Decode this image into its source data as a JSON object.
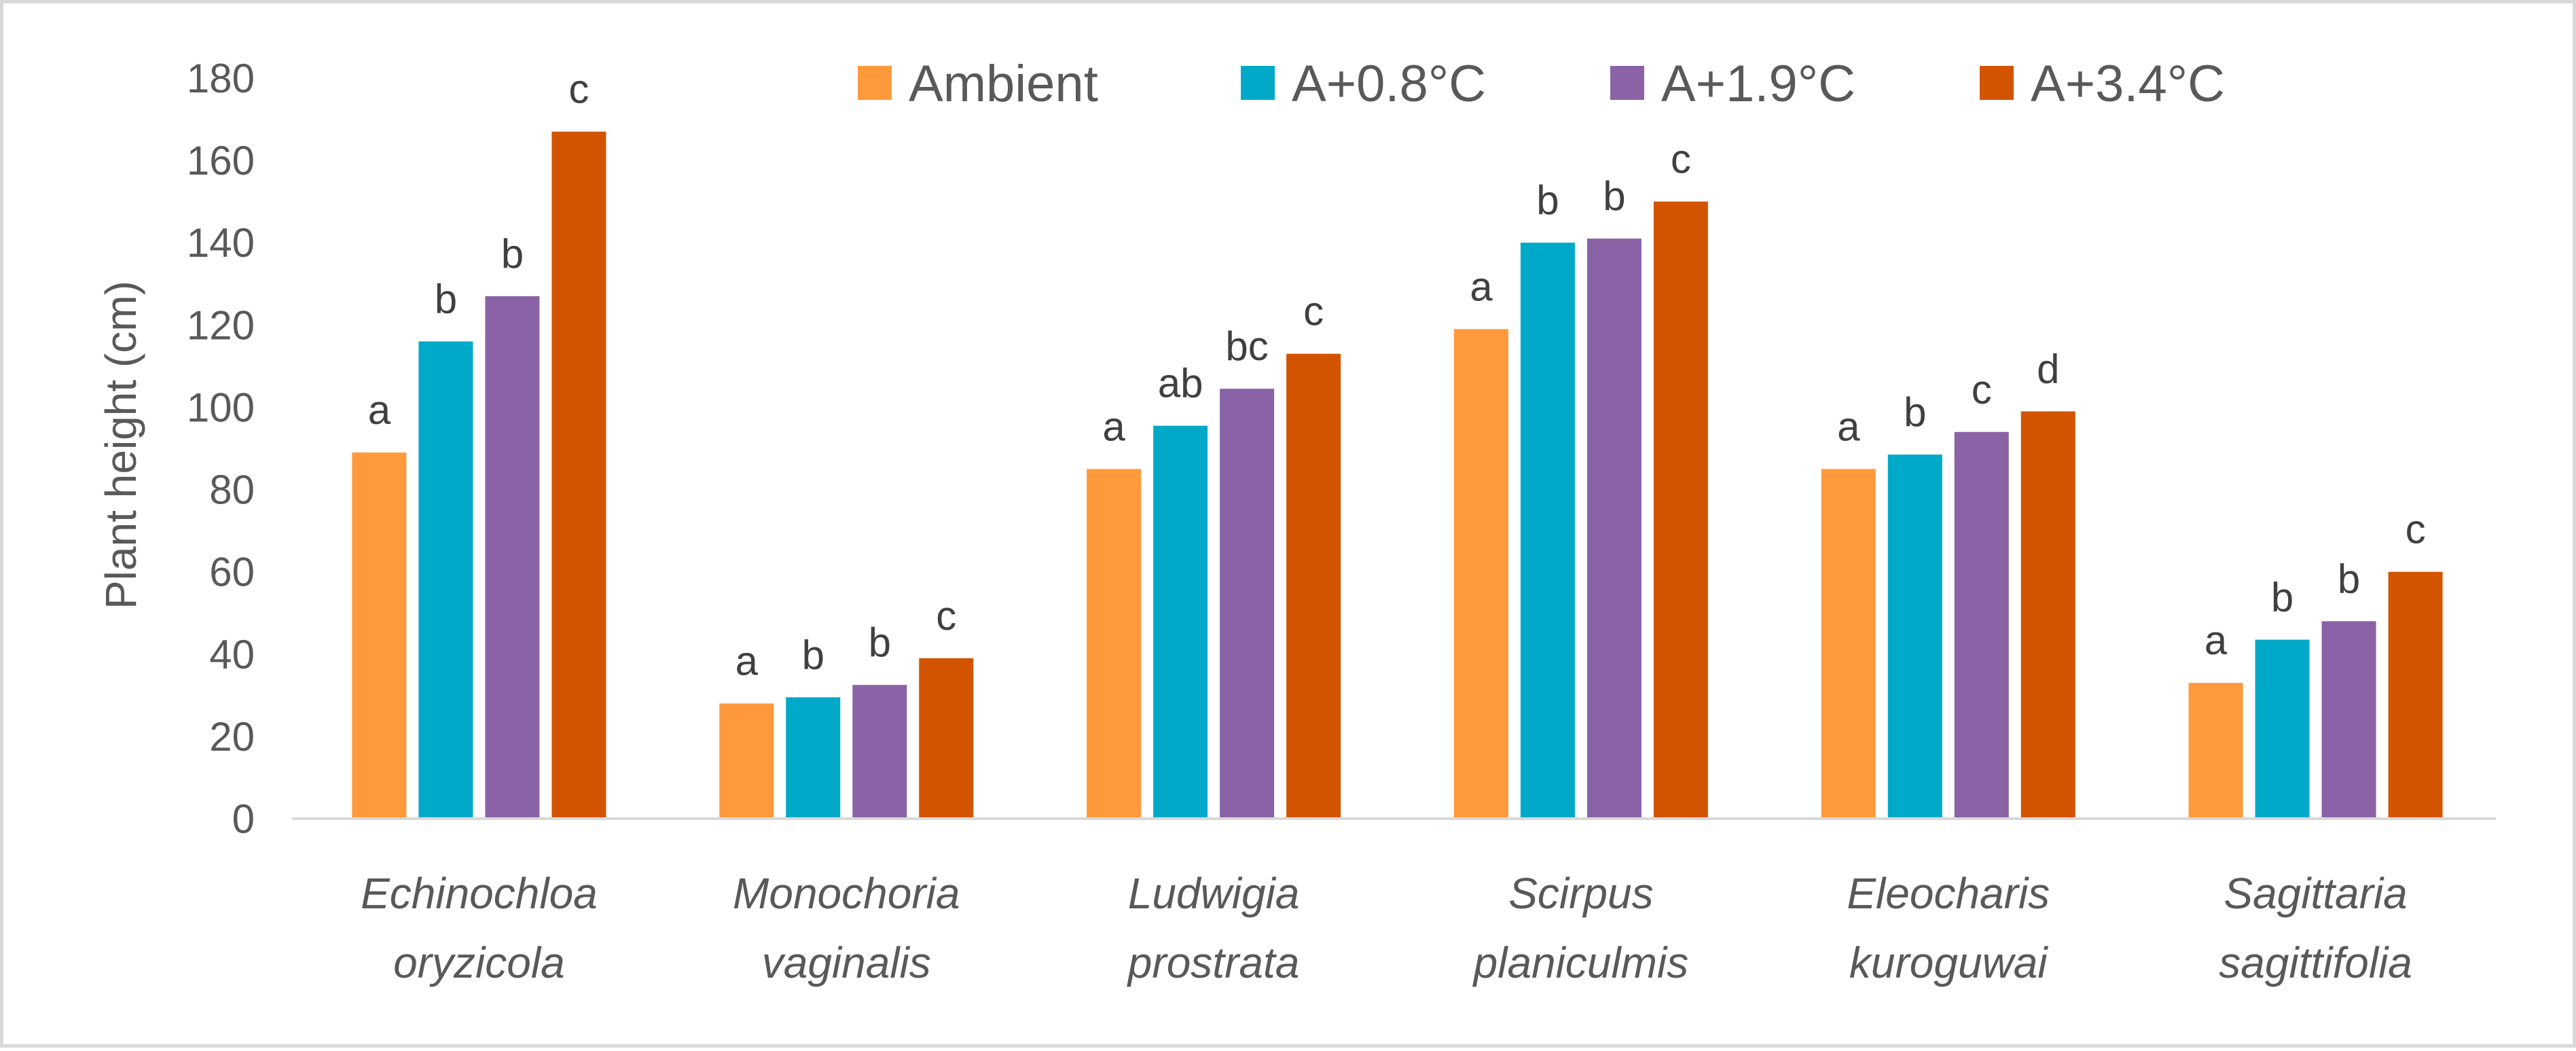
{
  "chart_data": {
    "type": "bar",
    "title": "",
    "xlabel": "",
    "ylabel": "Plant height (cm)",
    "ylim": [
      0,
      180
    ],
    "yticks": [
      0,
      20,
      40,
      60,
      80,
      100,
      120,
      140,
      160,
      180
    ],
    "grid": false,
    "legend_position": "top",
    "categories": [
      [
        "Echinochloa",
        "oryzicola"
      ],
      [
        "Monochoria",
        "vaginalis"
      ],
      [
        "Ludwigia",
        "prostrata"
      ],
      [
        "Scirpus",
        "planiculmis"
      ],
      [
        "Eleocharis",
        "kuroguwai"
      ],
      [
        "Sagittaria",
        "sagittifolia"
      ]
    ],
    "series": [
      {
        "name": "Ambient",
        "color": "#ff9a3c",
        "values": [
          89,
          28,
          85,
          119,
          85,
          33
        ],
        "letters": [
          "a",
          "a",
          "a",
          "a",
          "a",
          "a"
        ]
      },
      {
        "name": "A+0.8°C",
        "color": "#00a9c8",
        "values": [
          116,
          29.5,
          95.5,
          140,
          88.5,
          43.5
        ],
        "letters": [
          "b",
          "b",
          "ab",
          "b",
          "b",
          "b"
        ]
      },
      {
        "name": "A+1.9°C",
        "color": "#8a63a6",
        "values": [
          127,
          32.5,
          104.5,
          141,
          94,
          48
        ],
        "letters": [
          "b",
          "b",
          "bc",
          "b",
          "c",
          "b"
        ]
      },
      {
        "name": "A+3.4°C",
        "color": "#d35400",
        "values": [
          167,
          39,
          113,
          150,
          99,
          60
        ],
        "letters": [
          "c",
          "c",
          "c",
          "c",
          "d",
          "c"
        ]
      }
    ]
  }
}
